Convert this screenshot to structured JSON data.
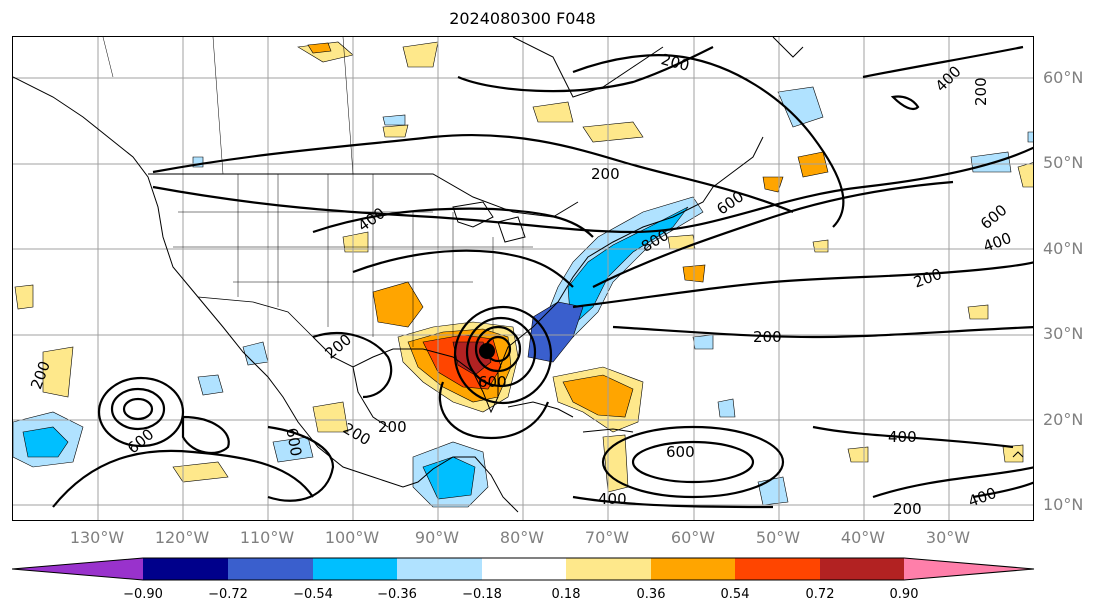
{
  "title": "2024080300 F048",
  "map": {
    "lat_labels": [
      "60°N",
      "50°N",
      "40°N",
      "30°N",
      "20°N",
      "10°N"
    ],
    "lon_labels": [
      "130°W",
      "120°W",
      "110°W",
      "100°W",
      "90°W",
      "80°W",
      "70°W",
      "60°W",
      "50°W",
      "40°W",
      "30°W"
    ],
    "contour_labels": [
      "200",
      "200",
      "200",
      "200",
      "200",
      "200",
      "200",
      "400",
      "400",
      "400",
      "400",
      "400",
      "600",
      "600",
      "600",
      "600",
      "600",
      "600",
      "800",
      "200",
      "400",
      "200",
      "200"
    ]
  },
  "colorbar": {
    "ticks": [
      "−0.90",
      "−0.72",
      "−0.54",
      "−0.36",
      "−0.18",
      "0.18",
      "0.36",
      "0.54",
      "0.72",
      "0.90"
    ],
    "colors": [
      "#9932cc",
      "#00008b",
      "#3a5fcd",
      "#00bfff",
      "#b0e2ff",
      "#ffffff",
      "#fee88b",
      "#ffa500",
      "#ff4500",
      "#b22222",
      "#ff7faa"
    ]
  }
}
